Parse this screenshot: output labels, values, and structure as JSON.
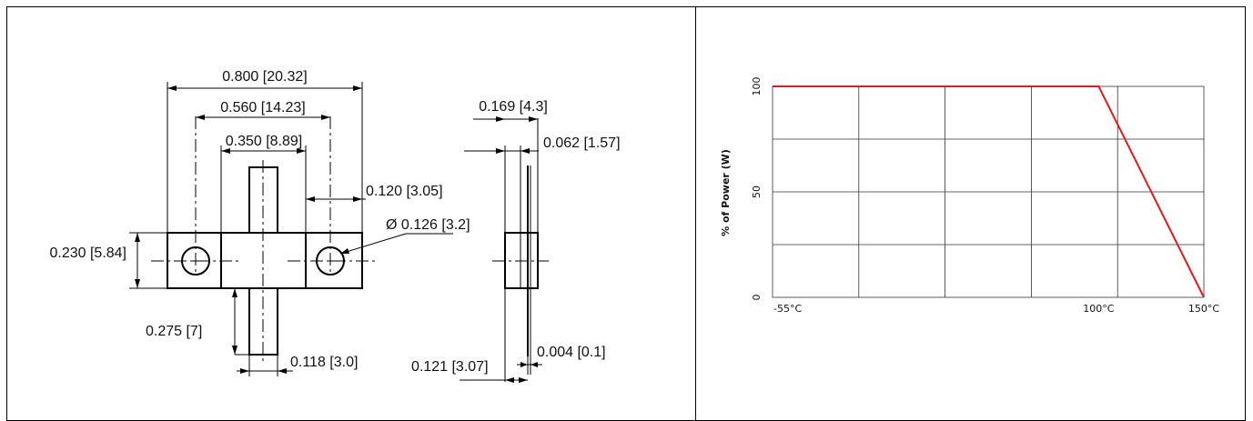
{
  "drawing": {
    "dims": {
      "overall_length": "0.800 [20.32]",
      "hole_spacing": "0.560 [14.23]",
      "body_width": "0.350 [8.89]",
      "tab_offset": "0.120 [3.05]",
      "hole_diameter": "Ø 0.126 [3.2]",
      "flange_height": "0.230 [5.84]",
      "lead_length": "0.275 [7]",
      "lead_width": "0.118 [3.0]",
      "side_thickness": "0.169 [4.3]",
      "flange_thickness": "0.062 [1.57]",
      "side_base": "0.121 [3.07]",
      "lead_thickness": "0.004 [0.1]"
    }
  },
  "chart_data": {
    "type": "line",
    "title": "",
    "xlabel": "",
    "ylabel": "% of Power (W)",
    "x_tick_labels": [
      "-55°C",
      "100°C",
      "150°C"
    ],
    "y_tick_labels": [
      "0",
      "50",
      "100"
    ],
    "xlim": [
      -55,
      150
    ],
    "ylim": [
      0,
      100
    ],
    "grid": true,
    "series": [
      {
        "color": "#e31a1c",
        "points": [
          [
            -55,
            100
          ],
          [
            100,
            100
          ],
          [
            150,
            0
          ]
        ]
      }
    ]
  }
}
